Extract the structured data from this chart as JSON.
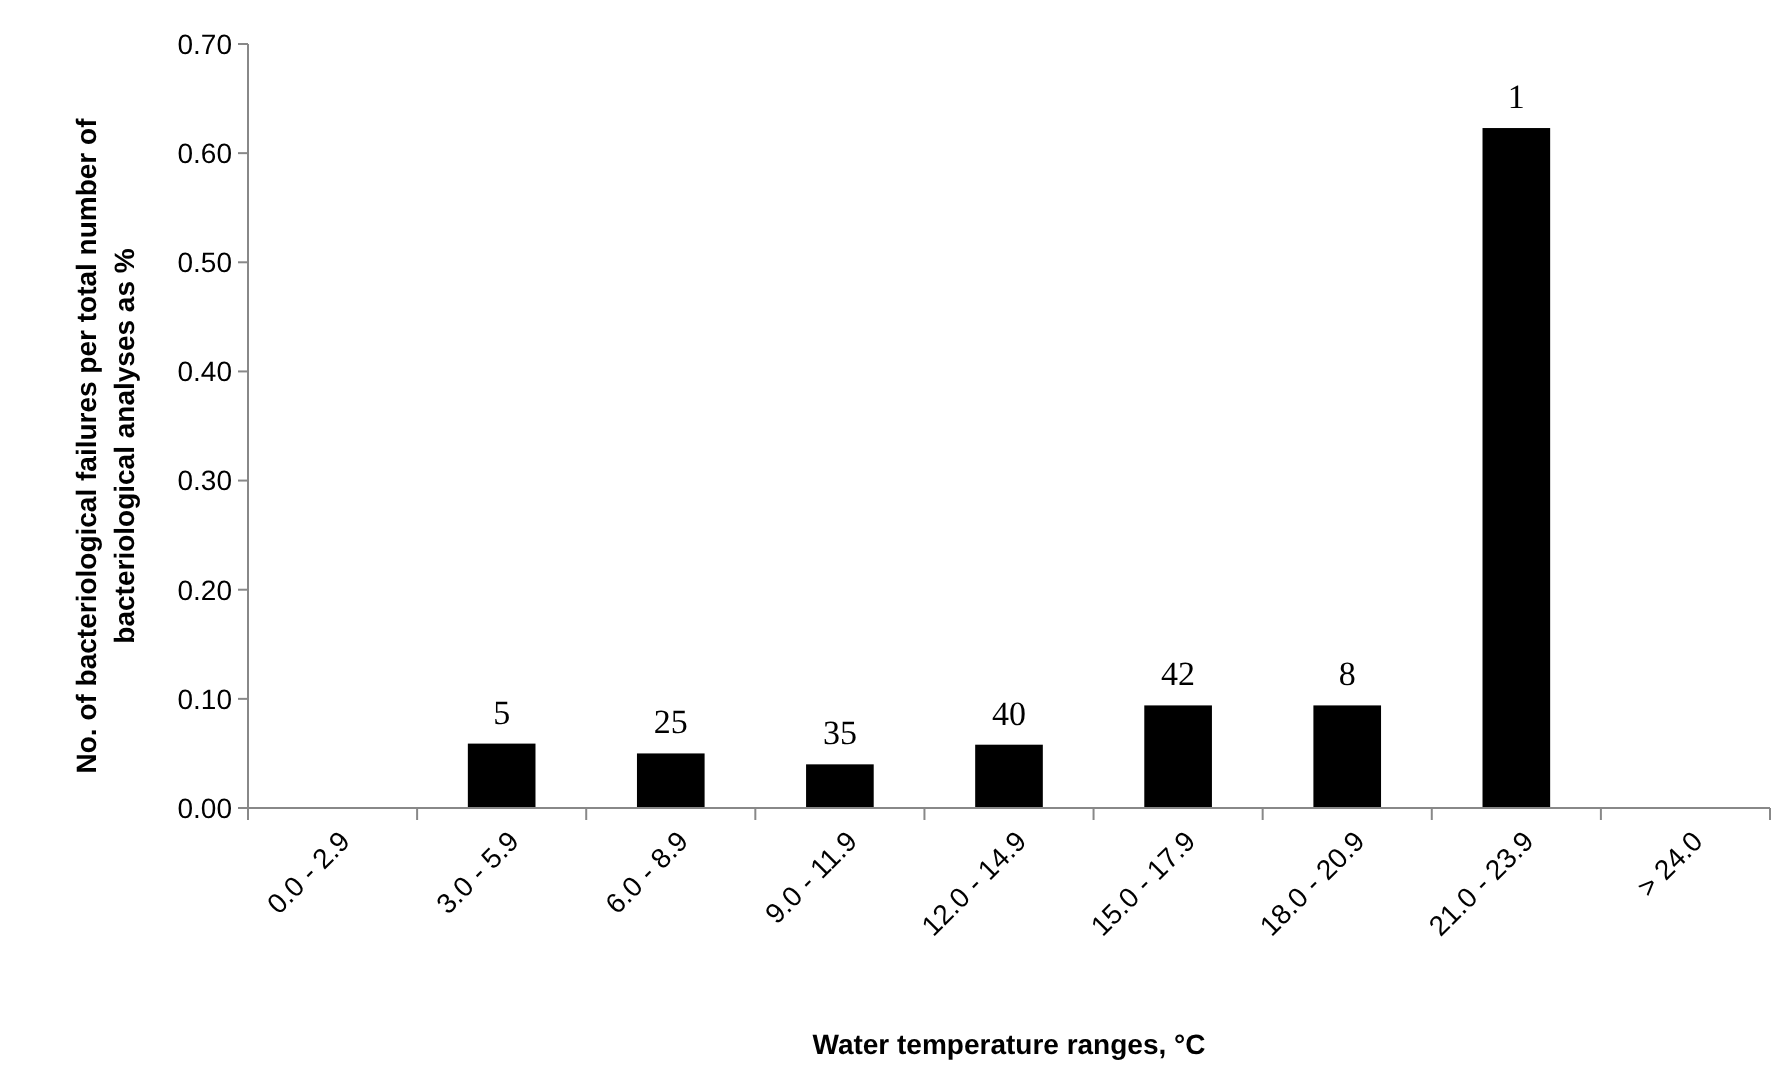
{
  "chart_data": {
    "type": "bar",
    "xlabel": "Water temperature ranges, °C",
    "ylabel": "No. of bacteriological failures per total number of\nbacteriological analyses as %",
    "categories": [
      "0.0 - 2.9",
      "3.0 - 5.9",
      "6.0 - 8.9",
      "9.0 - 11.9",
      "12.0 - 14.9",
      "15.0 - 17.9",
      "18.0 - 20.9",
      "21.0 - 23.9",
      "> 24.0"
    ],
    "values": [
      0,
      0.059,
      0.05,
      0.04,
      0.058,
      0.094,
      0.094,
      0.623,
      0
    ],
    "annotations": [
      {
        "text": "5",
        "x": "3.0 - 5.9",
        "y": 0.059
      },
      {
        "text": "25",
        "x": "6.0 - 8.9",
        "y": 0.05
      },
      {
        "text": "35",
        "x": "9.0 - 11.9",
        "y": 0.04
      },
      {
        "text": "40",
        "x": "12.0 - 14.9",
        "y": 0.058
      },
      {
        "text": "42",
        "x": "15.0 - 17.9",
        "y": 0.094
      },
      {
        "text": "8",
        "x": "18.0 - 20.9",
        "y": 0.094
      },
      {
        "text": "1",
        "x": "21.0 - 23.9",
        "y": 0.623
      }
    ],
    "color": "#000000",
    "ylim": [
      0,
      0.7
    ],
    "yticks": [
      {
        "value": 0,
        "label": "0.00"
      },
      {
        "value": 0.1,
        "label": "0.10"
      },
      {
        "value": 0.2,
        "label": "0.20"
      },
      {
        "value": 0.3,
        "label": "0.30"
      },
      {
        "value": 0.4,
        "label": "0.40"
      },
      {
        "value": 0.5,
        "label": "0.50"
      },
      {
        "value": 0.6,
        "label": "0.60"
      },
      {
        "value": 0.7,
        "label": "0.70"
      }
    ],
    "grid": false
  }
}
